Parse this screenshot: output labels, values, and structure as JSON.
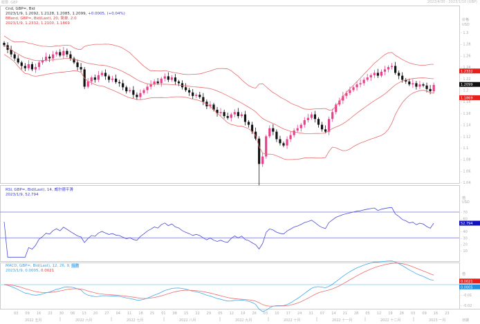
{
  "window": {
    "title": "概要: GBP",
    "range": "2022/4/30 - 2023/1/10 (GBP)"
  },
  "main": {
    "legend1": "Cnd, GBP=, Bid",
    "legend2": "2023/1/9, 1.2092, 1.2128, 1.2085, 1.2099,",
    "legend2_change": "+0.0005, (+0.04%)",
    "legend3": "BBand, GBP=, Bid(Last), 20, 简单, 2.0",
    "legend4": "2023/1/9, 1.2332, 1.2100, 1.1869",
    "axis_title": "价格",
    "axis_unit": "USD",
    "ticks": [
      "1.3",
      "1.28",
      "1.26",
      "1.24",
      "1.22",
      "1.2",
      "1.18",
      "1.16",
      "1.14",
      "1.12",
      "1.1",
      "1.08",
      "1.06",
      "1.04"
    ],
    "last_price": "1.2099",
    "bb_upper": "1.2332",
    "bb_lower": "1.1869"
  },
  "rsi": {
    "legend1": "RSI, GBP=, Bid(Last), 14, 威尔德平滑",
    "legend2": "2023/1/9, 52.794",
    "axis_title": "值",
    "axis_unit": "USD",
    "ticks": [
      "70",
      "60",
      "40",
      "30",
      "20",
      "10"
    ],
    "last": "52.794"
  },
  "macd": {
    "legend1": "MACD, GBP=, Bid(Last), 12, 26, 9,",
    "legend1_tag": "指数",
    "legend2a": "2023/1/9, 0.0005,",
    "legend2b": "0.0021",
    "axis_title": "值",
    "ticks": [
      "-0.01",
      "-0.02"
    ],
    "signal_last": "0.0021",
    "macd_last": "0.0005"
  },
  "xaxis": {
    "days": [
      "03",
      "09",
      "16",
      "23",
      "30",
      "06",
      "13",
      "20",
      "27",
      "04",
      "11",
      "18",
      "25",
      "01",
      "08",
      "15",
      "22",
      "29",
      "05",
      "12",
      "19",
      "26",
      "03",
      "10",
      "17",
      "24",
      "31",
      "07",
      "14",
      "21",
      "28",
      "05",
      "12",
      "19",
      "28",
      "03",
      "09",
      "16",
      "23"
    ],
    "months": [
      "2022 五月",
      "2022 六月",
      "2022 七月",
      "2022 八月",
      "2022 九月",
      "2022 十月",
      "2022 十一月",
      "2022 十二月",
      "2023 一月"
    ],
    "unit": "日期"
  },
  "colors": {
    "up": "#e8408c",
    "down": "#111111",
    "bband": "#e86a6a",
    "rsi": "#4848d8",
    "macd": "#40a8ec",
    "signal": "#ee6a6a",
    "guide": "#9090e0"
  },
  "chart_data": {
    "type": "candlestick",
    "instrument": "GBP=",
    "ylim": [
      1.04,
      1.3
    ],
    "closes": [
      1.278,
      1.27,
      1.262,
      1.255,
      1.248,
      1.242,
      1.238,
      1.245,
      1.236,
      1.24,
      1.248,
      1.252,
      1.258,
      1.255,
      1.262,
      1.266,
      1.26,
      1.268,
      1.262,
      1.255,
      1.248,
      1.24,
      1.236,
      1.206,
      1.215,
      1.222,
      1.218,
      1.226,
      1.23,
      1.224,
      1.218,
      1.22,
      1.214,
      1.212,
      1.205,
      1.198,
      1.2,
      1.192,
      1.188,
      1.195,
      1.2,
      1.206,
      1.21,
      1.215,
      1.212,
      1.22,
      1.224,
      1.218,
      1.222,
      1.215,
      1.212,
      1.205,
      1.2,
      1.196,
      1.19,
      1.192,
      1.188,
      1.18,
      1.172,
      1.175,
      1.166,
      1.16,
      1.162,
      1.155,
      1.152,
      1.158,
      1.162,
      1.155,
      1.158,
      1.145,
      1.14,
      1.128,
      1.116,
      1.072,
      1.085,
      1.12,
      1.134,
      1.128,
      1.115,
      1.108,
      1.104,
      1.115,
      1.122,
      1.13,
      1.134,
      1.14,
      1.148,
      1.152,
      1.158,
      1.15,
      1.14,
      1.132,
      1.128,
      1.15,
      1.162,
      1.175,
      1.182,
      1.19,
      1.195,
      1.2,
      1.205,
      1.21,
      1.212,
      1.218,
      1.222,
      1.226,
      1.23,
      1.225,
      1.232,
      1.236,
      1.24,
      1.242,
      1.23,
      1.225,
      1.218,
      1.215,
      1.21,
      1.212,
      1.206,
      1.21,
      1.208,
      1.202,
      1.198,
      1.2092
    ],
    "last_candle": {
      "date": "2023/1/9",
      "open": 1.2092,
      "high": 1.2128,
      "low": 1.2085,
      "close": 1.2099
    },
    "bollinger": {
      "period": 20,
      "std": 2.0,
      "last": {
        "upper": 1.2332,
        "middle": 1.21,
        "lower": 1.1869
      }
    },
    "rsi": {
      "period": 14,
      "last": 52.794,
      "levels": [
        70,
        30
      ],
      "ylim": [
        0,
        100
      ]
    },
    "macd": {
      "fast": 12,
      "slow": 26,
      "signal": 9,
      "last": {
        "macd": 0.0005,
        "signal": 0.0021
      }
    }
  }
}
